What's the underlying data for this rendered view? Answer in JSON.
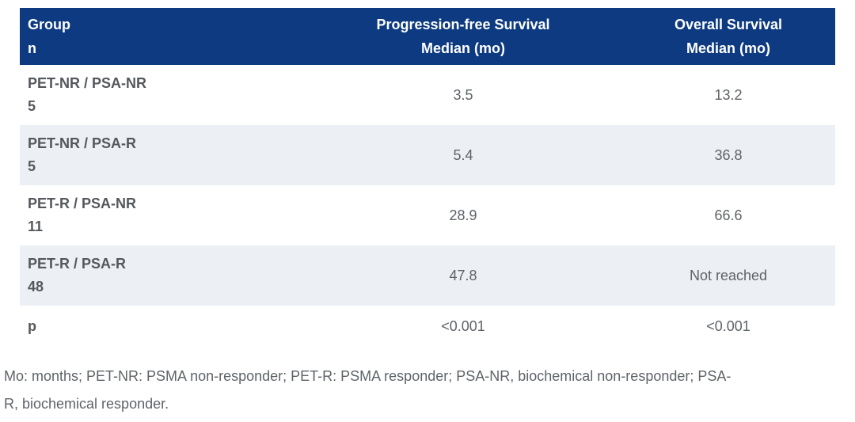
{
  "colors": {
    "header_bg": "#0d3a80",
    "header_text": "#ffffff",
    "alt_row_bg": "#eceff4",
    "group_text": "#54585c",
    "value_text": "#5f6368"
  },
  "table": {
    "columns": [
      {
        "line1": "Group",
        "line2": "n"
      },
      {
        "line1": "Progression-free Survival",
        "line2": "Median (mo)"
      },
      {
        "line1": "Overall Survival",
        "line2": "Median (mo)"
      }
    ],
    "rows": [
      {
        "group": "PET-NR / PSA-NR",
        "n": "5",
        "pfs": "3.5",
        "os": "13.2"
      },
      {
        "group": "PET-NR / PSA-R",
        "n": "5",
        "pfs": "5.4",
        "os": "36.8"
      },
      {
        "group": "PET-R / PSA-NR",
        "n": "11",
        "pfs": "28.9",
        "os": "66.6"
      },
      {
        "group": "PET-R / PSA-R",
        "n": "48",
        "pfs": "47.8",
        "os": "Not reached"
      }
    ],
    "p_row": {
      "label": "p",
      "pfs": "<0.001",
      "os": "<0.001"
    }
  },
  "footnote": "Mo: months; PET-NR: PSMA non-responder; PET-R: PSMA responder; PSA-NR, biochemical non-responder; PSA-R, biochemical responder."
}
